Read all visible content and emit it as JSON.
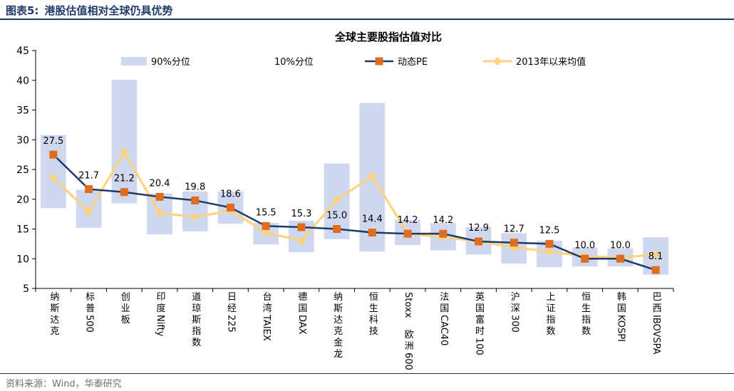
{
  "header": {
    "figure_label": "图表5:",
    "figure_title": "港股估值相对全球仍具优势"
  },
  "source": "资料来源：Wind，华泰研究",
  "colors": {
    "band": "#cfd8ef",
    "pe": "#1f3a68",
    "pe_marker": "#e06c1e",
    "avg": "#fdd27c",
    "axis": "#000000",
    "header": "#1f3a68"
  },
  "chart_data": {
    "type": "line",
    "title": "全球主要股指估值对比",
    "xlabel": "",
    "ylabel": "",
    "ylim": [
      5,
      45
    ],
    "yticks": [
      5,
      10,
      15,
      20,
      25,
      30,
      35,
      40,
      45
    ],
    "grid": false,
    "legend_position": "top",
    "categories": [
      "纳斯达克",
      "标普500",
      "创业板",
      "印度Nifty",
      "道琼斯指数",
      "日经225",
      "台湾TAIEX",
      "德国DAX",
      "纳斯达克金龙",
      "恒生科技",
      "Stoxx欧洲600",
      "法国CAC40",
      "英国富时100",
      "沪深300",
      "上证指数",
      "恒生指数",
      "韩国KOSPI",
      "巴西IBOVSPA"
    ],
    "legend": {
      "p90": "90%分位",
      "p10": "10%分位",
      "pe": "动态PE",
      "avg": "2013年以来均值"
    },
    "series": [
      {
        "name": "90%分位",
        "type": "bar",
        "values": [
          30.8,
          21.6,
          40.1,
          21.0,
          21.3,
          21.3,
          16.0,
          16.4,
          26.0,
          36.2,
          16.5,
          16.0,
          15.3,
          14.3,
          13.0,
          11.9,
          11.7,
          13.6
        ]
      },
      {
        "name": "10%分位",
        "type": "bar",
        "values": [
          18.5,
          15.2,
          19.3,
          14.1,
          14.6,
          15.9,
          12.4,
          11.1,
          13.3,
          11.2,
          12.3,
          11.4,
          10.7,
          9.2,
          8.6,
          8.7,
          8.7,
          7.3
        ]
      },
      {
        "name": "动态PE",
        "type": "line",
        "values": [
          27.5,
          21.7,
          21.2,
          20.4,
          19.8,
          18.6,
          15.5,
          15.3,
          15.0,
          14.4,
          14.2,
          14.2,
          12.9,
          12.7,
          12.5,
          10.0,
          10.0,
          8.1
        ]
      },
      {
        "name": "2013年以来均值",
        "type": "line",
        "values": [
          23.6,
          17.9,
          27.9,
          17.7,
          17.0,
          18.1,
          14.4,
          13.0,
          19.9,
          23.9,
          14.2,
          13.6,
          12.9,
          11.9,
          11.2,
          10.4,
          10.2,
          10.7
        ]
      }
    ],
    "data_labels": [
      "27.5",
      "21.7",
      "21.2",
      "20.4",
      "19.8",
      "18.6",
      "15.5",
      "15.3",
      "15.0",
      "14.4",
      "14.2",
      "14.2",
      "12.9",
      "12.7",
      "12.5",
      "10.0",
      "10.0",
      "8.1"
    ]
  }
}
